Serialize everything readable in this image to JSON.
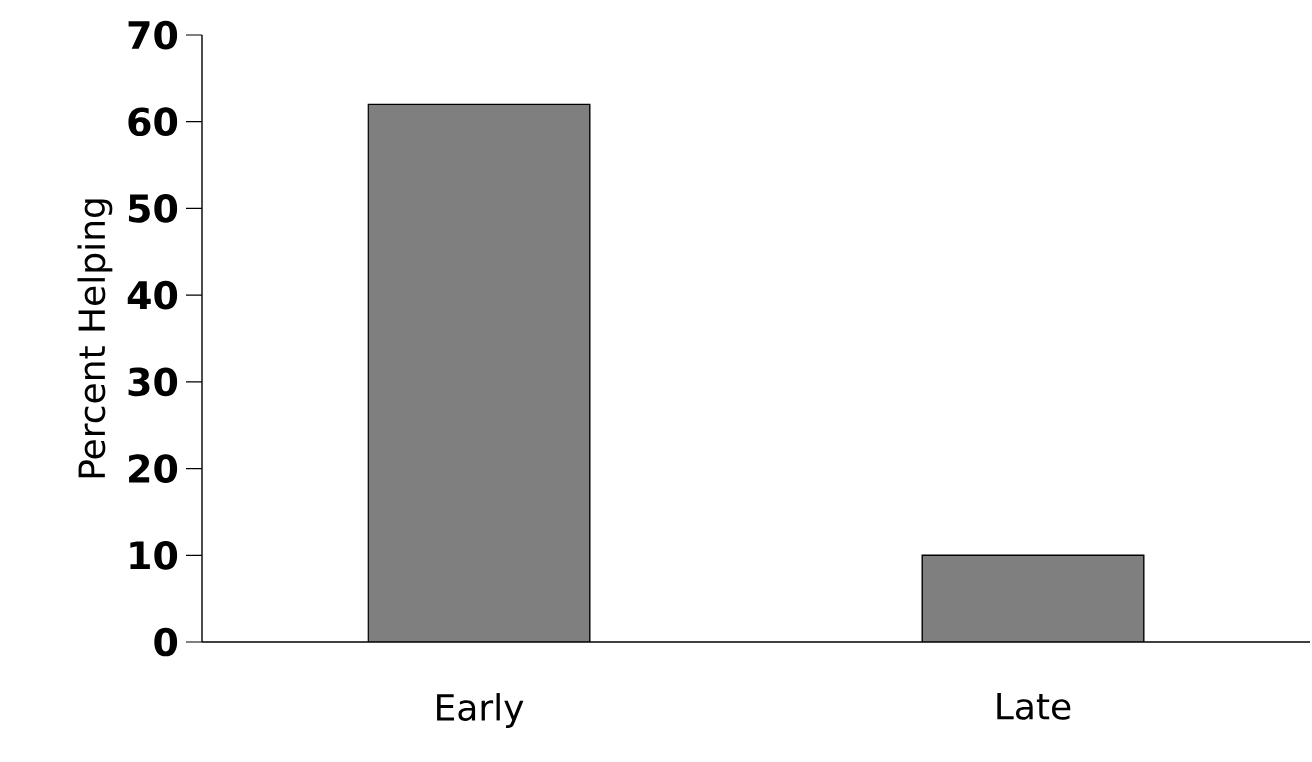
{
  "chart_data": {
    "type": "bar",
    "ylabel": "Percent Helping",
    "categories": [
      "Early",
      "Late"
    ],
    "values": [
      62,
      10
    ],
    "color": "#7f7f7f",
    "ylim": [
      0,
      70
    ],
    "yticks": [
      0,
      10,
      20,
      30,
      40,
      50,
      60,
      70
    ],
    "grid": false
  }
}
